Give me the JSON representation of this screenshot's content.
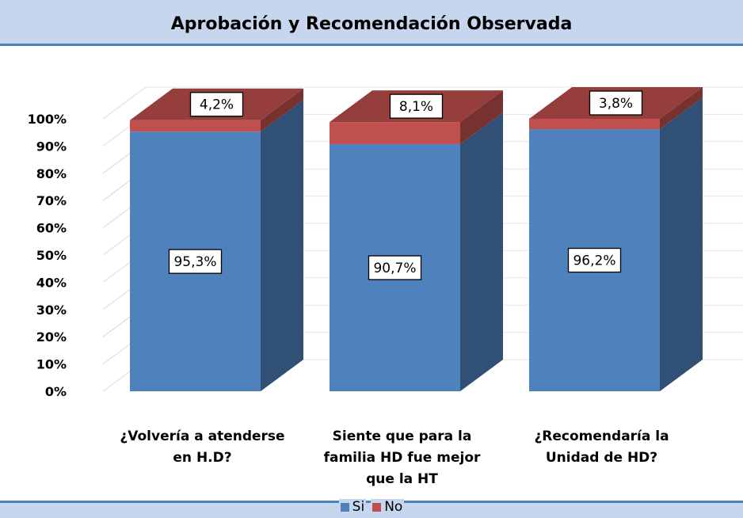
{
  "chart_data": {
    "type": "bar",
    "stacked": true,
    "three_d": true,
    "title": "Aprobación y Recomendación Observada",
    "categories": [
      [
        "¿Volvería a atenderse",
        "en H.D?"
      ],
      [
        "Siente que para la",
        "familia HD fue mejor",
        "que la HT"
      ],
      [
        "¿Recomendaría la",
        "Unidad de HD?"
      ]
    ],
    "series": [
      {
        "name": "Si",
        "color": "#4f81bd",
        "values": [
          95.3,
          90.7,
          96.2
        ],
        "labels": [
          "95,3%",
          "90,7%",
          "96,2%"
        ]
      },
      {
        "name": "No",
        "color": "#c0504d",
        "values": [
          4.2,
          8.1,
          3.8
        ],
        "labels": [
          "4,2%",
          "8,1%",
          "3,8%"
        ]
      }
    ],
    "yticks": [
      "0%",
      "10%",
      "20%",
      "30%",
      "40%",
      "50%",
      "60%",
      "70%",
      "80%",
      "90%",
      "100%"
    ],
    "ylim": [
      0,
      100
    ],
    "grid": true,
    "legend_position": "bottom"
  }
}
